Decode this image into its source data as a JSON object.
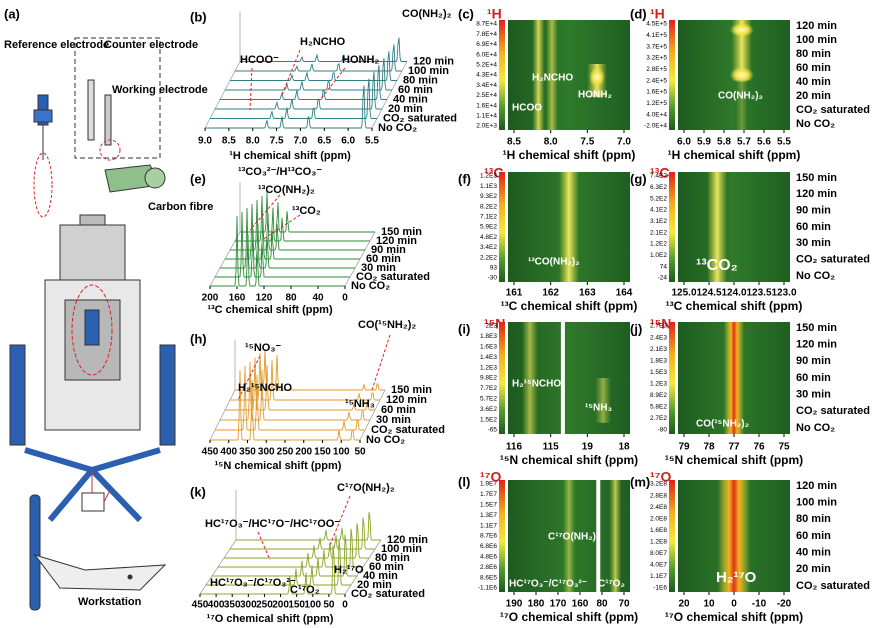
{
  "panels": {
    "a": {
      "label": "(a)",
      "texts": [
        "Reference electrode",
        "Counter electrode",
        "Working electrode",
        "Carbon fibre",
        "Workstation"
      ]
    },
    "b": {
      "label": "(b)",
      "xticks": [
        "9.0",
        "8.5",
        "8.0",
        "7.5",
        "7.0",
        "6.5",
        "6.0",
        "5.5"
      ],
      "xlabel": "¹H chemical shift (ppm)",
      "series": [
        "120 min",
        "100 min",
        "80 min",
        "60 min",
        "40 min",
        "20 min",
        "CO₂ saturated",
        "No CO₂"
      ],
      "annotations": [
        "H₂NCHO",
        "HCOO⁻",
        "HONH₂",
        "CO(NH₂)₂"
      ]
    },
    "c": {
      "label": "(c)",
      "nucleus": "¹H",
      "colorbar": [
        "8.7E+4",
        "7.8E+4",
        "6.9E+4",
        "6.0E+4",
        "5.2E+4",
        "4.3E+4",
        "3.4E+4",
        "2.5E+4",
        "1.6E+4",
        "1.1E+4",
        "2.0E+3"
      ],
      "xticks": [
        "8.5",
        "8.0",
        "7.5",
        "7.0"
      ],
      "xlabel": "¹H chemical shift (ppm)",
      "annotations": [
        "H₂NCHO",
        "HONH₂",
        "HCOO"
      ]
    },
    "d": {
      "label": "(d)",
      "nucleus": "¹H",
      "colorbar": [
        "4.5E+5",
        "4.1E+5",
        "3.7E+5",
        "3.2E+5",
        "2.8E+5",
        "2.4E+5",
        "1.6E+5",
        "1.2E+5",
        "4.0E+4",
        "-2.0E+4"
      ],
      "xticks": [
        "6.0",
        "5.9",
        "5.8",
        "5.7",
        "5.6",
        "5.5"
      ],
      "xlabel": "¹H chemical shift (ppm)",
      "series": [
        "120 min",
        "100 min",
        "80 min",
        "60 min",
        "40 min",
        "20 min",
        "CO₂ saturated",
        "No CO₂"
      ],
      "annotations": [
        "CO(NH₂)₂"
      ]
    },
    "e": {
      "label": "(e)",
      "xticks": [
        "200",
        "160",
        "120",
        "80",
        "40",
        "0"
      ],
      "xlabel": "¹³C chemical shift (ppm)",
      "series": [
        "150 min",
        "120 min",
        "90 min",
        "60 min",
        "30 min",
        "CO₂ saturated",
        "No CO₂"
      ],
      "annotations": [
        "¹³CO₃²⁻/H¹³CO₃⁻",
        "¹³CO(NH₂)₂",
        "¹³CO₂"
      ]
    },
    "f": {
      "label": "(f)",
      "nucleus": "¹³C",
      "colorbar": [
        "1.2E3",
        "1.1E3",
        "9.3E2",
        "8.2E2",
        "7.1E2",
        "5.9E2",
        "4.8E2",
        "3.4E2",
        "2.2E2",
        "93",
        "-30"
      ],
      "xticks": [
        "161",
        "162",
        "163",
        "164"
      ],
      "xlabel": "¹³C chemical shift (ppm)",
      "annotations": [
        "¹³CO(NH₂)₂"
      ]
    },
    "g": {
      "label": "(g)",
      "nucleus": "¹³C",
      "colorbar": [
        "7.4E2",
        "6.3E2",
        "5.2E2",
        "4.1E2",
        "3.1E2",
        "2.1E2",
        "1.2E2",
        "1.0E2",
        "74",
        "-24"
      ],
      "xticks": [
        "125.0",
        "124.5",
        "124.0",
        "123.5",
        "123.0"
      ],
      "xlabel": "¹³C chemical shift (ppm)",
      "series": [
        "150 min",
        "120 min",
        "90 min",
        "60 min",
        "30 min",
        "CO₂ saturated",
        "No CO₂"
      ],
      "annotations": [
        "¹³CO₂"
      ]
    },
    "h": {
      "label": "(h)",
      "xticks": [
        "450",
        "400",
        "350",
        "300",
        "250",
        "200",
        "150",
        "100",
        "50"
      ],
      "xlabel": "¹⁵N chemical shift (ppm)",
      "series": [
        "150 min",
        "120 min",
        "60 min",
        "30 min",
        "CO₂ saturated",
        "No CO₂"
      ],
      "annotations": [
        "¹⁵NO₃⁻",
        "CO(¹⁵NH₂)₂",
        "H₂¹⁵NCHO",
        "¹⁵NH₃"
      ]
    },
    "i": {
      "label": "(i)",
      "nucleus": "¹⁵N",
      "colorbar": [
        "2E3",
        "1.8E3",
        "1.6E3",
        "1.4E3",
        "1.2E3",
        "9.8E2",
        "7.7E2",
        "5.7E2",
        "3.6E2",
        "1.5E2",
        "-65"
      ],
      "xticks": [
        "116",
        "115",
        "19",
        "18"
      ],
      "xlabel": "¹⁵N chemical shift (ppm)",
      "annotations": [
        "H₂¹⁵NCHO",
        "¹⁵NH₃"
      ]
    },
    "j": {
      "label": "(j)",
      "nucleus": "¹⁵N",
      "colorbar": [
        "2.7E3",
        "2.4E3",
        "2.1E3",
        "1.8E3",
        "1.5E3",
        "1.2E3",
        "8.9E2",
        "5.8E2",
        "2.7E2",
        "-80"
      ],
      "xticks": [
        "79",
        "78",
        "77",
        "76",
        "75"
      ],
      "xlabel": "¹⁵N chemical shift (ppm)",
      "series": [
        "150 min",
        "120 min",
        "90 min",
        "60 min",
        "30 min",
        "CO₂ saturated",
        "No CO₂"
      ],
      "annotations": [
        "CO(¹⁵NH₂)₂"
      ]
    },
    "k": {
      "label": "(k)",
      "xticks": [
        "450",
        "400",
        "350",
        "300",
        "250",
        "200",
        "150",
        "100",
        "50",
        "0"
      ],
      "xlabel": "¹⁷O chemical shift (ppm)",
      "series": [
        "120 min",
        "100 min",
        "80 min",
        "60 min",
        "40 min",
        "20 min",
        "CO₂ saturated"
      ],
      "annotations": [
        "C¹⁷O(NH₂)₂",
        "HC¹⁷O₃⁻/HC¹⁷O⁻/HC¹⁷OO⁻",
        "H₂¹⁷O",
        "HC¹⁷O₃⁻/C¹⁷O₃²⁻",
        "C¹⁷O₂"
      ]
    },
    "l": {
      "label": "(l)",
      "nucleus": "¹⁷O",
      "colorbar": [
        "1.9E7",
        "1.7E7",
        "1.5E7",
        "1.3E7",
        "1.1E7",
        "8.7E6",
        "6.8E6",
        "4.8E6",
        "2.8E6",
        "8.6E5",
        "-1.1E6"
      ],
      "xticks": [
        "190",
        "180",
        "170",
        "160",
        "80",
        "70"
      ],
      "xlabel": "¹⁷O chemical shift (ppm)",
      "annotations": [
        "C¹⁷O(NH₂)₂",
        "HC¹⁷O₃⁻/C¹⁷O₃²⁻",
        "C¹⁷O₂"
      ]
    },
    "m": {
      "label": "(m)",
      "nucleus": "¹⁷O",
      "colorbar": [
        "3.2E8",
        "2.8E8",
        "2.4E8",
        "2.0E8",
        "1.6E8",
        "1.2E8",
        "8.0E7",
        "4.0E7",
        "1.1E7",
        "-1E6"
      ],
      "xticks": [
        "20",
        "10",
        "0",
        "-10",
        "-20"
      ],
      "xlabel": "¹⁷O chemical shift (ppm)",
      "series": [
        "120 min",
        "100 min",
        "80 min",
        "60 min",
        "40 min",
        "20 min",
        "CO₂ saturated"
      ],
      "annotations": [
        "H₂¹⁷O"
      ]
    }
  }
}
